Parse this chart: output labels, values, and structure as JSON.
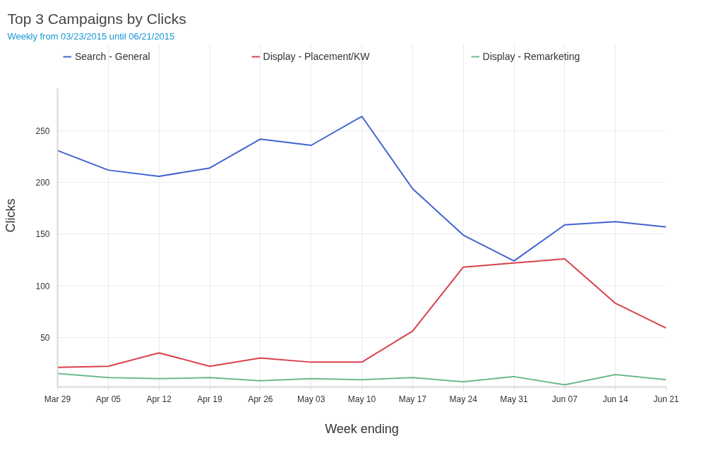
{
  "chart_data": {
    "type": "line",
    "title": "Top 3 Campaigns by Clicks",
    "subtitle": "Weekly from 03/23/2015 until 06/21/2015",
    "xlabel": "Week ending",
    "ylabel": "Clicks",
    "categories": [
      "Mar 29",
      "Apr 05",
      "Apr 12",
      "Apr 19",
      "Apr 26",
      "May 03",
      "May 10",
      "May 17",
      "May 24",
      "May 31",
      "Jun 07",
      "Jun 14",
      "Jun 21"
    ],
    "series": [
      {
        "name": "Search - General",
        "color": "#4264d0",
        "values": [
          231,
          212,
          206,
          214,
          242,
          236,
          264,
          194,
          149,
          124,
          159,
          162,
          157
        ]
      },
      {
        "name": "Display - Placement/KW",
        "color": "#d9414d",
        "values": [
          21,
          22,
          35,
          22,
          30,
          26,
          26,
          56,
          118,
          122,
          126,
          83,
          59
        ]
      },
      {
        "name": "Display - Remarketing",
        "color": "#6cba8b",
        "values": [
          15,
          11,
          10,
          11,
          8,
          10,
          9,
          11,
          7,
          12,
          4,
          14,
          9
        ]
      }
    ],
    "ylim": [
      2,
      291
    ],
    "yticks": [
      50,
      100,
      150,
      200,
      250
    ],
    "grid": true,
    "legend": "top",
    "line_style": "solid"
  }
}
